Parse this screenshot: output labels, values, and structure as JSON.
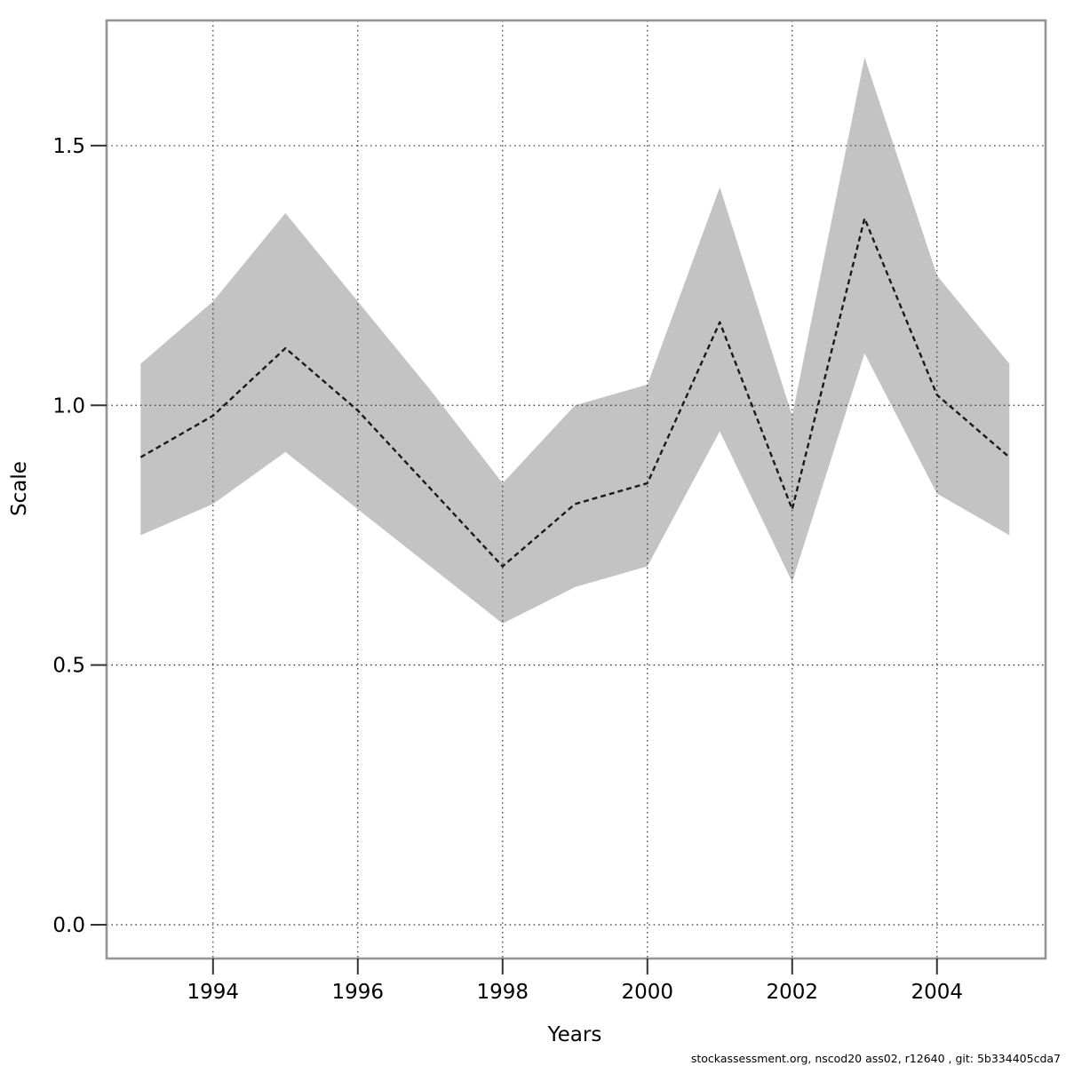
{
  "chart_data": {
    "type": "line",
    "subtype": "line-with-confidence-band",
    "title": "",
    "xlabel": "Years",
    "ylabel": "Scale",
    "x": [
      1993,
      1994,
      1995,
      1996,
      1997,
      1998,
      1999,
      2000,
      2001,
      2002,
      2003,
      2004,
      2005
    ],
    "series": [
      {
        "name": "estimate",
        "style": "dashed black line",
        "values": [
          0.9,
          0.98,
          1.11,
          0.99,
          0.84,
          0.69,
          0.81,
          0.85,
          1.16,
          0.8,
          1.36,
          1.02,
          0.9
        ]
      },
      {
        "name": "ci-upper",
        "style": "band upper bound",
        "values": [
          1.08,
          1.2,
          1.37,
          1.2,
          1.03,
          0.85,
          1.0,
          1.04,
          1.42,
          0.98,
          1.67,
          1.25,
          1.08
        ]
      },
      {
        "name": "ci-lower",
        "style": "band lower bound",
        "values": [
          0.75,
          0.81,
          0.91,
          0.8,
          0.69,
          0.58,
          0.65,
          0.69,
          0.95,
          0.66,
          1.1,
          0.83,
          0.75
        ]
      }
    ],
    "x_ticks": [
      1994,
      1996,
      1998,
      2000,
      2002,
      2004
    ],
    "y_tick_labels": [
      "0.0",
      "0.5",
      "1.0",
      "1.5"
    ],
    "y_tick_values": [
      0.0,
      0.5,
      1.0,
      1.5
    ],
    "xlim": [
      1992.53,
      2005.5
    ],
    "ylim": [
      -0.065,
      1.741
    ],
    "grid": "dotted, both axes, drawn above band",
    "legend": "none",
    "colors": {
      "band": "#c3c3c3",
      "line": "#1a1a1a",
      "grid": "#333333",
      "box_border": "#949494",
      "tick": "#333333",
      "text": "#000000",
      "background": "#ffffff"
    }
  },
  "footer": {
    "text": "stockassessment.org, nscod20 ass02, r12640 , git: 5b334405cda7"
  }
}
